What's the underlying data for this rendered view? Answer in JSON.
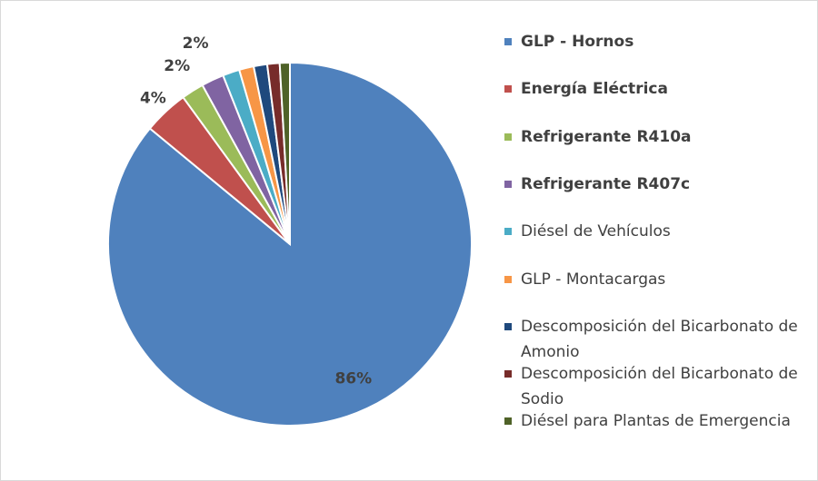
{
  "chart_data": {
    "type": "pie",
    "categories": [
      "GLP - Hornos",
      "Energía Eléctrica",
      "Refrigerante R410a",
      "Refrigerante R407c",
      "Diésel de Vehículos",
      "GLP - Montacargas",
      "Descomposición del Bicarbonato de Amonio",
      "Descomposición del Bicarbonato de Sodio",
      "Diésel para Plantas de Emergencia"
    ],
    "values": [
      86,
      4,
      2,
      2,
      1.5,
      1.3,
      1.2,
      1.1,
      0.9
    ],
    "value_labels": [
      "86%",
      "4%",
      "2%",
      "2%",
      null,
      null,
      null,
      null,
      null
    ],
    "colors": [
      "#4f81bd",
      "#c0504d",
      "#9bbb59",
      "#8064a2",
      "#4bacc6",
      "#f79646",
      "#1f497d",
      "#772c2a",
      "#4f6228"
    ],
    "legend": "right"
  }
}
